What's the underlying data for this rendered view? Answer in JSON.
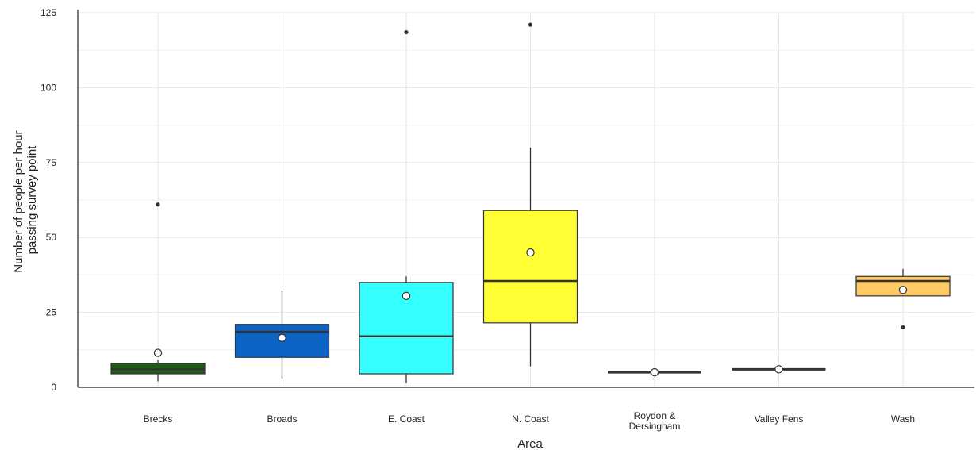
{
  "chart_data": {
    "type": "box",
    "xlabel": "Area",
    "ylabel_lines": [
      "Number of people per hour",
      "passing survey point"
    ],
    "ylim": [
      0,
      125
    ],
    "yticks": [
      0,
      25,
      50,
      75,
      100,
      125
    ],
    "grid": true,
    "legend": "none",
    "categories": [
      {
        "label": [
          "Brecks"
        ],
        "color": "#1e5e14",
        "q1": 4.5,
        "median": 6,
        "q3": 8,
        "whisker_low": 2,
        "whisker_high": 9,
        "mean": 11.5,
        "outliers": [
          61
        ]
      },
      {
        "label": [
          "Broads"
        ],
        "color": "#0b63c4",
        "q1": 10,
        "median": 18.5,
        "q3": 21,
        "whisker_low": 3,
        "whisker_high": 32,
        "mean": 16.5,
        "outliers": []
      },
      {
        "label": [
          "E. Coast"
        ],
        "color": "#33ffff",
        "q1": 4.5,
        "median": 17,
        "q3": 35,
        "whisker_low": 1.5,
        "whisker_high": 37,
        "mean": 30.5,
        "outliers": [
          118.5
        ]
      },
      {
        "label": [
          "N. Coast"
        ],
        "color": "#ffff33",
        "q1": 21.5,
        "median": 35.5,
        "q3": 59,
        "whisker_low": 7,
        "whisker_high": 80,
        "mean": 45,
        "outliers": [
          121
        ]
      },
      {
        "label": [
          "Roydon &",
          "Dersingham"
        ],
        "color": "#555555",
        "q1": 5,
        "median": 5,
        "q3": 5,
        "whisker_low": 5,
        "whisker_high": 5,
        "mean": 5,
        "outliers": []
      },
      {
        "label": [
          "Valley Fens"
        ],
        "color": "#555555",
        "q1": 6,
        "median": 6,
        "q3": 6,
        "whisker_low": 6,
        "whisker_high": 6,
        "mean": 6,
        "outliers": []
      },
      {
        "label": [
          "Wash"
        ],
        "color": "#ffc966",
        "q1": 30.5,
        "median": 35.5,
        "q3": 37,
        "whisker_low": 30.5,
        "whisker_high": 39.5,
        "mean": 32.5,
        "outliers": [
          20
        ]
      }
    ]
  }
}
